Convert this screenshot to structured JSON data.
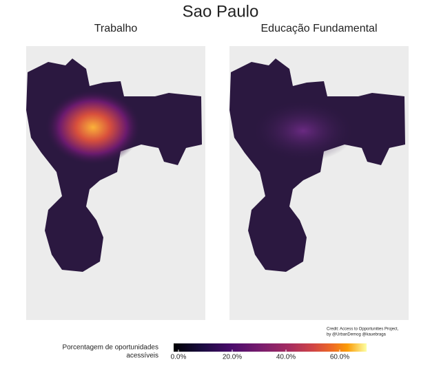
{
  "title": "Sao Paulo",
  "panels": [
    {
      "title": "Trabalho"
    },
    {
      "title": "Educação Fundamental"
    }
  ],
  "credit": [
    "Credit: Access to Opportunities Project,",
    "by @UrbanDemog @kauebraga"
  ],
  "legend": {
    "title": [
      "Porcentagem de oportunidades",
      "acessíveis"
    ],
    "lim": [
      0,
      70
    ],
    "ticks": [
      {
        "value": 0,
        "label": "0.0%"
      },
      {
        "value": 20,
        "label": "20.0%"
      },
      {
        "value": 40,
        "label": "40.0%"
      },
      {
        "value": 60,
        "label": "60.0%"
      }
    ]
  }
}
